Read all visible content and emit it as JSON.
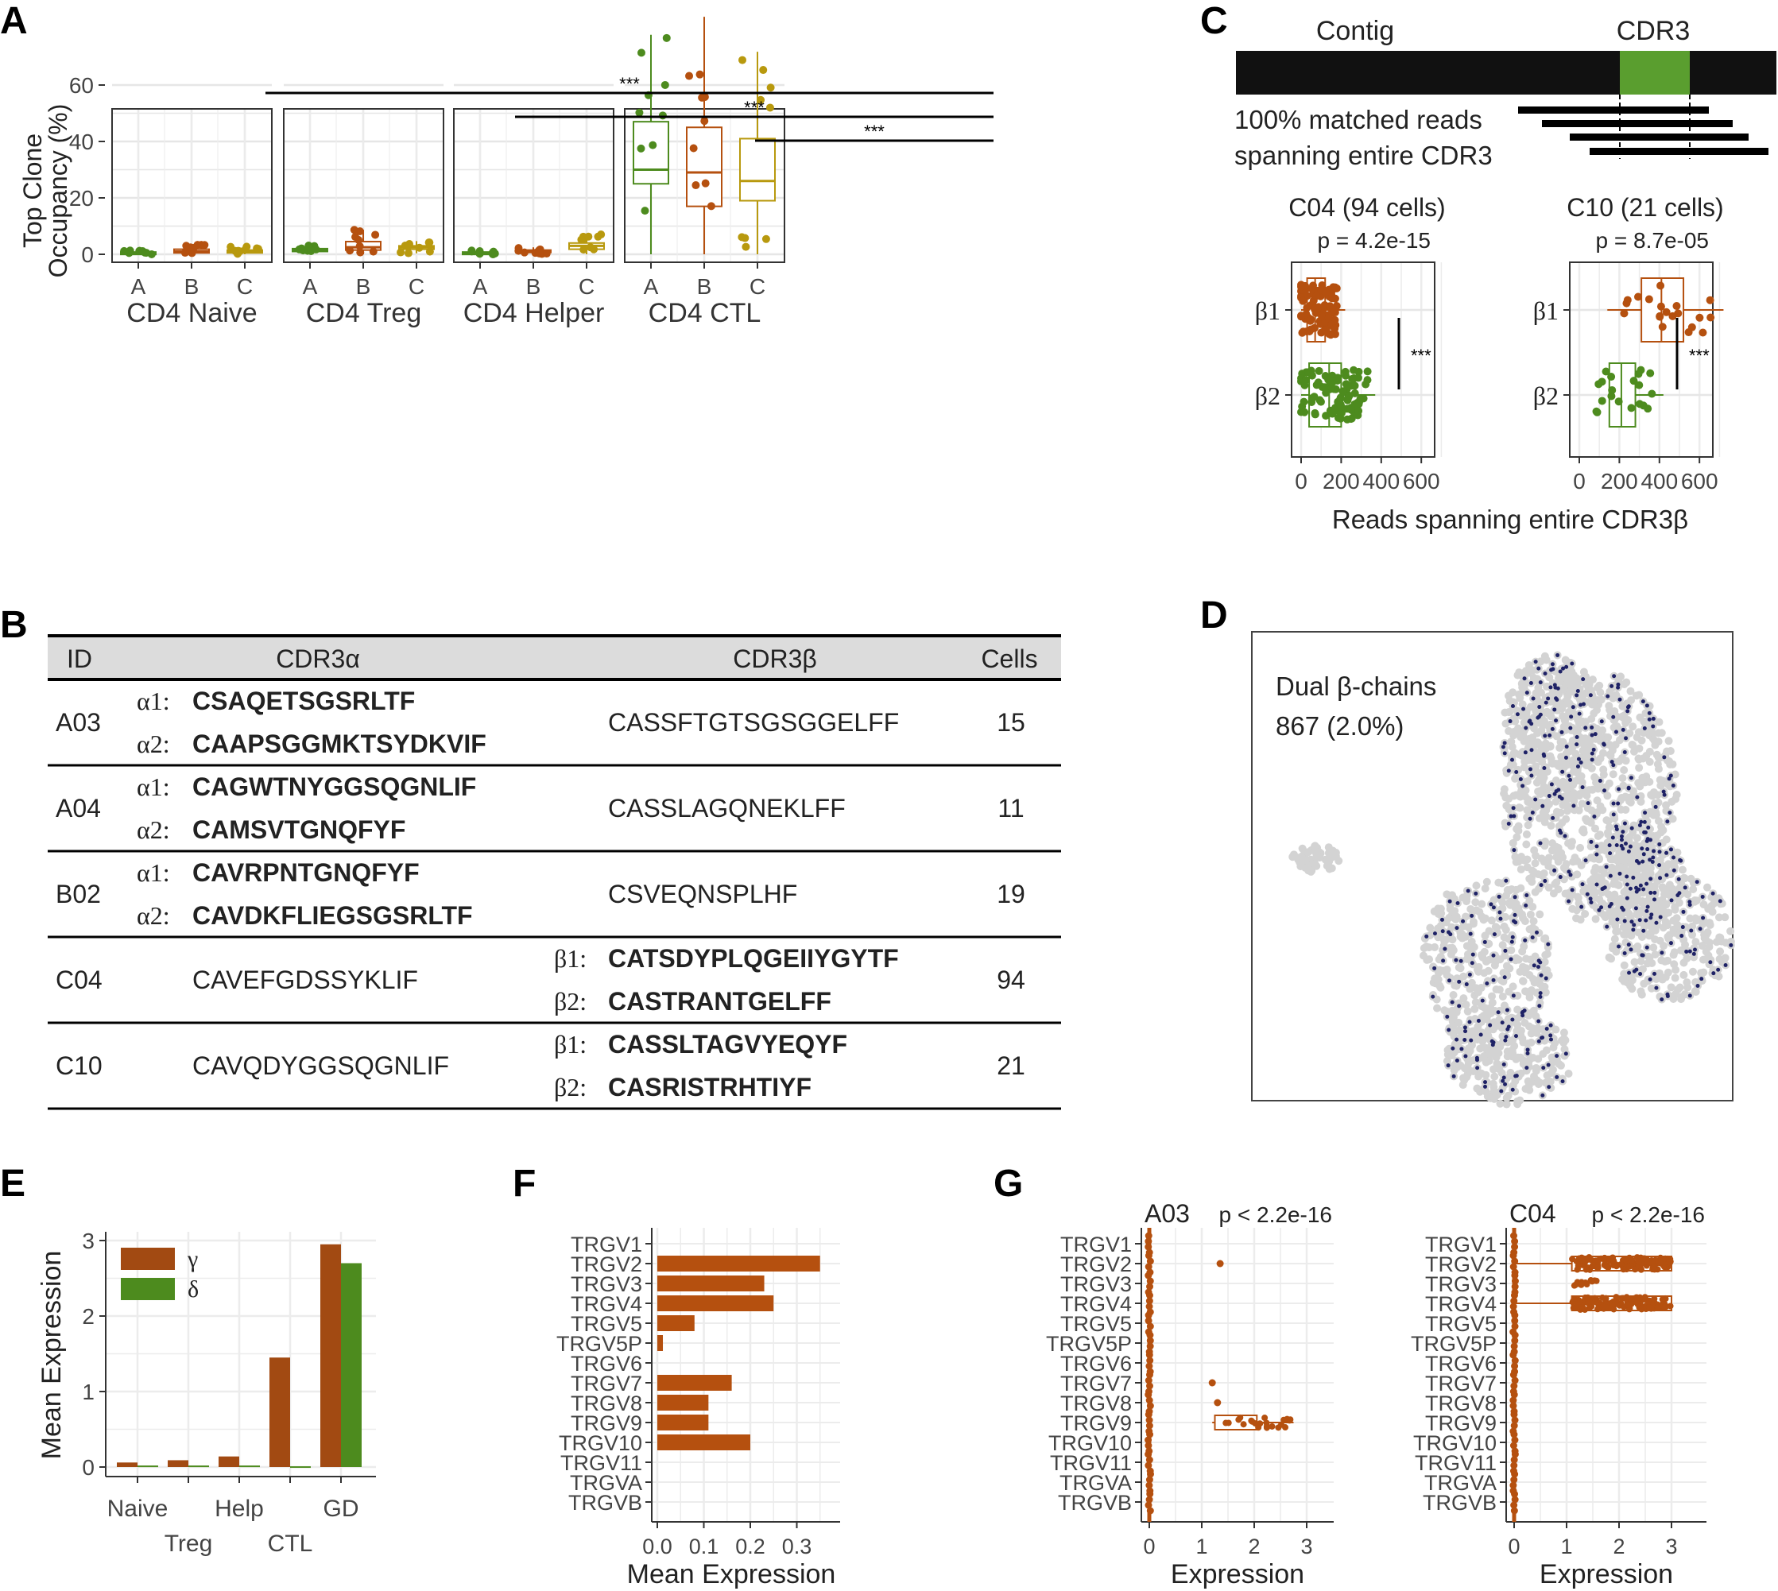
{
  "colors": {
    "A": "#4d8b1e",
    "B": "#b5500f",
    "C": "#b8990e",
    "gamma": "#a24a12",
    "delta": "#4d8b1e",
    "bar": "#b5500f",
    "dot": "#1f2266",
    "umap": "#d3d3d3",
    "cdr3": "#5a9e2f"
  },
  "panel_letters": {
    "a": "A",
    "b": "B",
    "c": "C",
    "d": "D",
    "e": "E",
    "f": "F",
    "g": "G"
  },
  "panelA": {
    "ylabel1": "Top Clone",
    "ylabel2": "Occupancy (%)",
    "yticks": [
      "0",
      "20",
      "40",
      "60"
    ],
    "facets": [
      {
        "name": "CD4 Naive",
        "stats": [
          [
            0.2,
            0.5,
            0.8
          ],
          [
            0.5,
            1.0,
            1.8
          ],
          [
            0.5,
            1.0,
            1.5
          ]
        ]
      },
      {
        "name": "CD4 Treg",
        "stats": [
          [
            1.0,
            1.5,
            2.0
          ],
          [
            1.5,
            2.5,
            4.5
          ],
          [
            1.8,
            2.5,
            3.0
          ]
        ]
      },
      {
        "name": "CD4 Helper",
        "stats": [
          [
            0.3,
            0.5,
            0.8
          ],
          [
            0.8,
            1.1,
            1.5
          ],
          [
            1.8,
            3.0,
            4.0
          ]
        ]
      },
      {
        "name": "CD4 CTL",
        "stats": [
          [
            25,
            30,
            47
          ],
          [
            17,
            29,
            45
          ],
          [
            19,
            26,
            41
          ]
        ]
      }
    ],
    "groups": [
      "A",
      "B",
      "C"
    ],
    "sig": [
      "***",
      "***",
      "***"
    ]
  },
  "panelB": {
    "headers": {
      "id": "ID",
      "a": "CDR3α",
      "b": "CDR3β",
      "cells": "Cells"
    },
    "rows": [
      {
        "id": "A03",
        "a": [
          [
            "α1:",
            "CSAQETSGSRLTF"
          ],
          [
            "α2:",
            "CAAPSGGMKTSYDKVIF"
          ]
        ],
        "b": [
          [
            "",
            "CASSFTGTSGSGGELFF"
          ]
        ],
        "cells": "15"
      },
      {
        "id": "A04",
        "a": [
          [
            "α1:",
            "CAGWTNYGGSQGNLIF"
          ],
          [
            "α2:",
            "CAMSVTGNQFYF"
          ]
        ],
        "b": [
          [
            "",
            "CASSLAGQNEKLFF"
          ]
        ],
        "cells": "11"
      },
      {
        "id": "B02",
        "a": [
          [
            "α1:",
            "CAVRPNTGNQFYF"
          ],
          [
            "α2:",
            "CAVDKFLIEGSGSRLTF"
          ]
        ],
        "b": [
          [
            "",
            "CSVEQNSPLHF"
          ]
        ],
        "cells": "19"
      },
      {
        "id": "C04",
        "a": [
          [
            "",
            "CAVEFGDSSYKLIF"
          ]
        ],
        "b": [
          [
            "β1:",
            "CATSDYPLQGEIIYGYTF"
          ],
          [
            "β2:",
            "CASTRANTGELFF"
          ]
        ],
        "cells": "94"
      },
      {
        "id": "C10",
        "a": [
          [
            "",
            "CAVQDYGGSQGNLIF"
          ]
        ],
        "b": [
          [
            "β1:",
            "CASSLTAGVYEQYF"
          ],
          [
            "β2:",
            "CASRISTRHTIYF"
          ]
        ],
        "cells": "21"
      }
    ]
  },
  "panelC": {
    "contig": "Contig",
    "cdr3": "CDR3",
    "reads1": "100% matched reads",
    "reads2": "spanning entire CDR3",
    "plots": [
      {
        "title": "C04 (94 cells)",
        "p": "p = 4.2e-15"
      },
      {
        "title": "C10 (21 cells)",
        "p": "p = 8.7e-05"
      }
    ],
    "rows": [
      "β1",
      "β2"
    ],
    "xticks": [
      "0",
      "200",
      "400",
      "600"
    ],
    "sig": "***",
    "xlabel": "Reads spanning entire CDR3β"
  },
  "panelD": {
    "line1": "Dual β-chains",
    "line2": "867 (2.0%)"
  },
  "chart_data": [
    {
      "type": "bar",
      "panel": "E",
      "categories": [
        "Naive",
        "Treg",
        "Help",
        "CTL",
        "GD"
      ],
      "series": [
        {
          "name": "γ",
          "values": [
            0.06,
            0.09,
            0.14,
            1.45,
            2.95
          ]
        },
        {
          "name": "δ",
          "values": [
            0.02,
            0.02,
            0.02,
            0.01,
            2.7
          ]
        }
      ],
      "ylabel": "Mean Expression",
      "ylim": [
        0,
        3
      ],
      "yticks": [
        "0",
        "1",
        "2",
        "3"
      ]
    },
    {
      "type": "bar",
      "panel": "F",
      "categories": [
        "TRGV1",
        "TRGV2",
        "TRGV3",
        "TRGV4",
        "TRGV5",
        "TRGV5P",
        "TRGV6",
        "TRGV7",
        "TRGV8",
        "TRGV9",
        "TRGV10",
        "TRGV11",
        "TRGVA",
        "TRGVB"
      ],
      "values": [
        0,
        0.35,
        0.23,
        0.25,
        0.08,
        0.012,
        0,
        0.16,
        0.11,
        0.11,
        0.2,
        0,
        0,
        0
      ],
      "xlabel": "Mean Expression",
      "xlim": [
        0,
        0.36
      ],
      "xticks": [
        "0.0",
        "0.1",
        "0.2",
        "0.3"
      ]
    },
    {
      "type": "scatter",
      "panel": "G",
      "categories": [
        "TRGV1",
        "TRGV2",
        "TRGV3",
        "TRGV4",
        "TRGV5",
        "TRGV5P",
        "TRGV6",
        "TRGV7",
        "TRGV8",
        "TRGV9",
        "TRGV10",
        "TRGV11",
        "TRGVA",
        "TRGVB"
      ],
      "xlabel": "Expression",
      "xlim": [
        0,
        3
      ],
      "xticks": [
        "0",
        "1",
        "2",
        "3"
      ],
      "subplots": [
        {
          "title": "A03",
          "p": "p < 2.2e-16"
        },
        {
          "title": "C04",
          "p": "p < 2.2e-16"
        }
      ]
    }
  ]
}
